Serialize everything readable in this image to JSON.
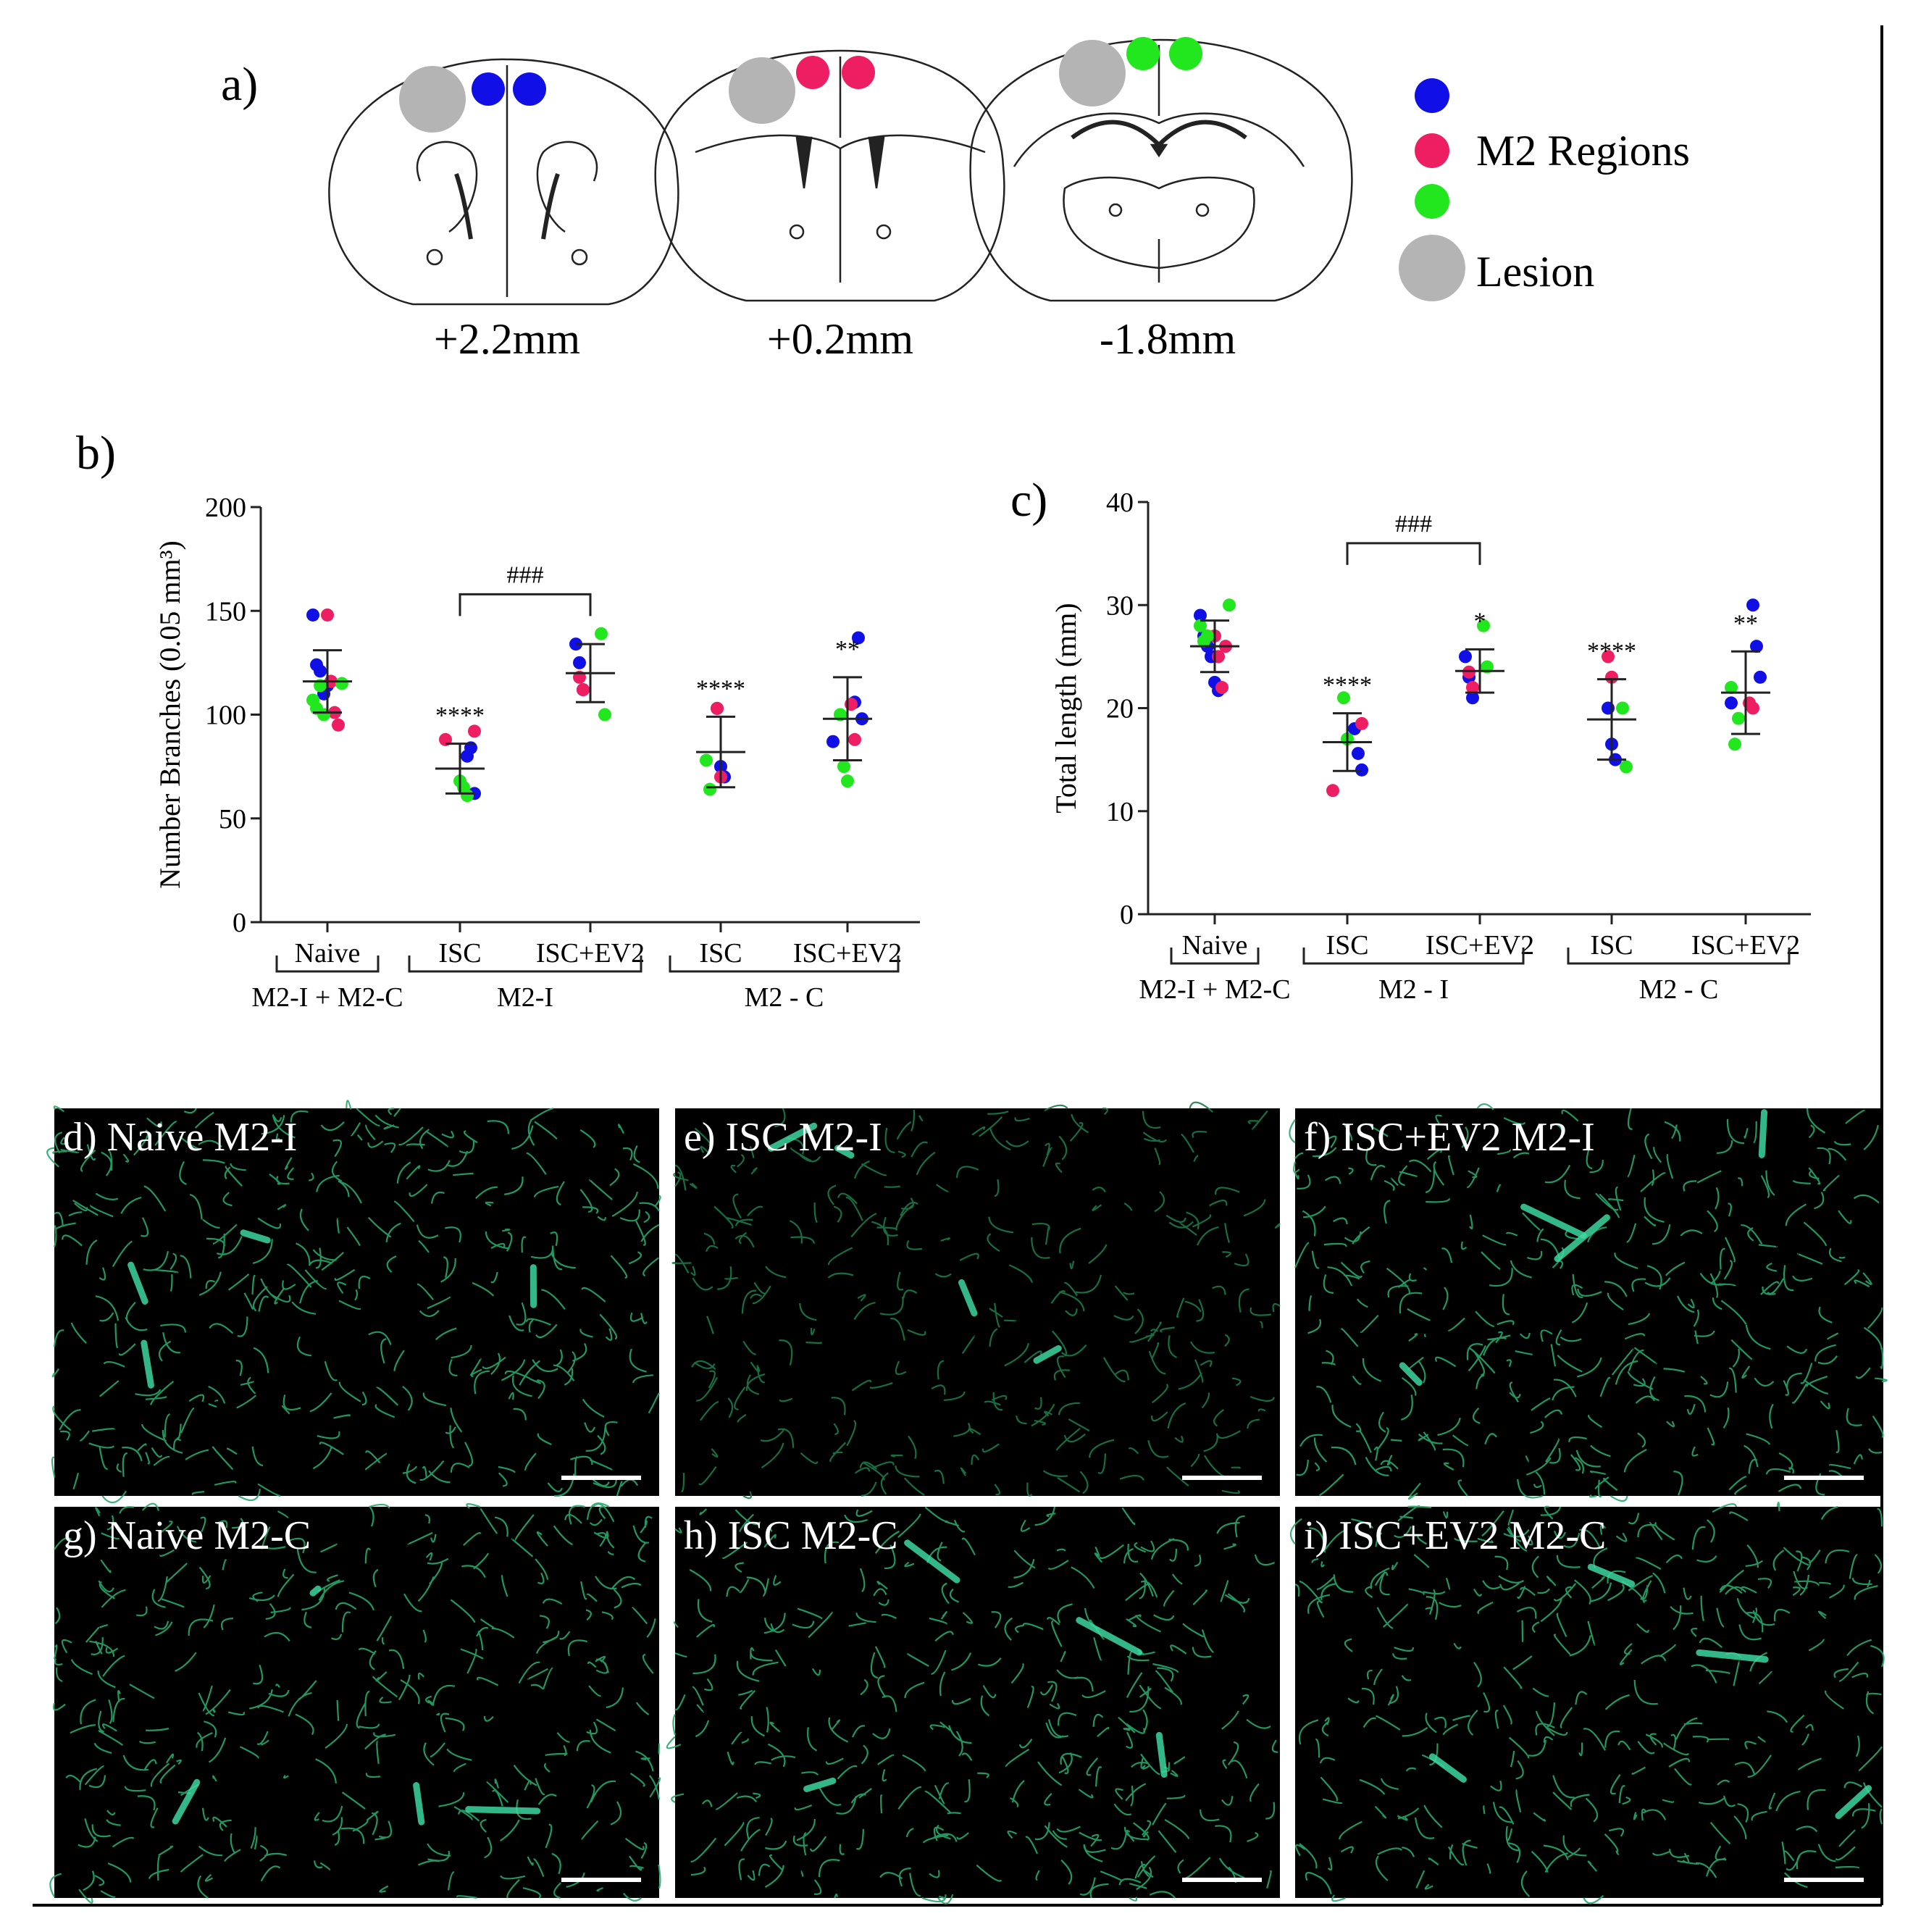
{
  "panel_a": {
    "label": "a)",
    "sections": [
      "+2.2mm",
      "+0.2mm",
      "-1.8mm"
    ],
    "legend": {
      "regions_label": "M2 Regions",
      "lesion_label": "Lesion"
    },
    "colors": {
      "blue": "#1010e6",
      "pink": "#ee1e62",
      "green": "#22e61e",
      "lesion": "#b4b4b4"
    }
  },
  "panel_b": {
    "label": "b)"
  },
  "panel_c": {
    "label": "c)"
  },
  "chart_data": [
    {
      "type": "scatter",
      "ylabel": "Number Branches (0.05 mm³)",
      "ylim": [
        0,
        200
      ],
      "yticks": [
        "0",
        "50",
        "100",
        "150",
        "200"
      ],
      "categories": [
        "Naive",
        "ISC",
        "ISC+EV2",
        "ISC",
        "ISC+EV2"
      ],
      "groups": [
        {
          "label": "M2-I + M2-C",
          "members": [
            0
          ]
        },
        {
          "label": "M2-I",
          "members": [
            1,
            2
          ]
        },
        {
          "label": "M2 - C",
          "members": [
            3,
            4
          ]
        }
      ],
      "mean": [
        116,
        74,
        120,
        82,
        98
      ],
      "sd": [
        15,
        12,
        14,
        17,
        20
      ],
      "significance": [
        "",
        "****",
        "",
        "****",
        "**"
      ],
      "comparison": {
        "from": 1,
        "to": 2,
        "label": "###",
        "y": 158
      },
      "series": [
        {
          "color": "blue",
          "points": [
            [
              0,
              148
            ],
            [
              0,
              124
            ],
            [
              0,
              121
            ],
            [
              0,
              110
            ],
            [
              0,
              114
            ],
            [
              0,
              116
            ],
            [
              1,
              80
            ],
            [
              1,
              84
            ],
            [
              1,
              62
            ],
            [
              2,
              134
            ],
            [
              2,
              125
            ],
            [
              2,
              112
            ],
            [
              3,
              103
            ],
            [
              3,
              75
            ],
            [
              3,
              70
            ],
            [
              4,
              106
            ],
            [
              4,
              137
            ],
            [
              4,
              98
            ],
            [
              4,
              87
            ]
          ]
        },
        {
          "color": "pink",
          "points": [
            [
              0,
              148
            ],
            [
              0,
              116
            ],
            [
              0,
              101
            ],
            [
              0,
              95
            ],
            [
              1,
              92
            ],
            [
              1,
              88
            ],
            [
              2,
              118
            ],
            [
              2,
              112
            ],
            [
              3,
              103
            ],
            [
              3,
              70
            ],
            [
              4,
              105
            ],
            [
              4,
              88
            ]
          ]
        },
        {
          "color": "green",
          "points": [
            [
              0,
              115
            ],
            [
              0,
              107
            ],
            [
              0,
              103
            ],
            [
              0,
              114
            ],
            [
              0,
              100
            ],
            [
              1,
              68
            ],
            [
              1,
              65
            ],
            [
              1,
              61
            ],
            [
              2,
              139
            ],
            [
              2,
              100
            ],
            [
              3,
              78
            ],
            [
              3,
              64
            ],
            [
              4,
              100
            ],
            [
              4,
              75
            ],
            [
              4,
              68
            ]
          ]
        }
      ]
    },
    {
      "type": "scatter",
      "ylabel": "Total length (mm)",
      "ylim": [
        0,
        40
      ],
      "yticks": [
        "0",
        "10",
        "20",
        "30",
        "40"
      ],
      "categories": [
        "Naive",
        "ISC",
        "ISC+EV2",
        "ISC",
        "ISC+EV2"
      ],
      "groups": [
        {
          "label": "M2-I + M2-C",
          "members": [
            0
          ]
        },
        {
          "label": "M2 - I",
          "members": [
            1,
            2
          ]
        },
        {
          "label": "M2 - C",
          "members": [
            3,
            4
          ]
        }
      ],
      "mean": [
        26.0,
        16.7,
        23.6,
        18.9,
        21.5
      ],
      "sd": [
        2.5,
        2.8,
        2.1,
        3.9,
        4.0
      ],
      "significance": [
        "",
        "****",
        "*",
        "****",
        "**"
      ],
      "comparison": {
        "from": 1,
        "to": 2,
        "label": "###",
        "y": 36
      },
      "series": [
        {
          "color": "blue",
          "points": [
            [
              0,
              29
            ],
            [
              0,
              27
            ],
            [
              0,
              26
            ],
            [
              0,
              25
            ],
            [
              0,
              22.5
            ],
            [
              0,
              21.7
            ],
            [
              1,
              18
            ],
            [
              1,
              15.6
            ],
            [
              1,
              14
            ],
            [
              2,
              25
            ],
            [
              2,
              23
            ],
            [
              2,
              21
            ],
            [
              3,
              20
            ],
            [
              3,
              16.5
            ],
            [
              3,
              15
            ],
            [
              4,
              30
            ],
            [
              4,
              26
            ],
            [
              4,
              23
            ],
            [
              4,
              20.5
            ]
          ]
        },
        {
          "color": "pink",
          "points": [
            [
              0,
              27
            ],
            [
              0,
              25
            ],
            [
              0,
              22
            ],
            [
              0,
              26
            ],
            [
              1,
              18.5
            ],
            [
              1,
              12
            ],
            [
              2,
              23.5
            ],
            [
              2,
              22
            ],
            [
              3,
              25
            ],
            [
              3,
              23
            ],
            [
              4,
              20.5
            ],
            [
              4,
              20
            ]
          ]
        },
        {
          "color": "green",
          "points": [
            [
              0,
              30
            ],
            [
              0,
              28
            ],
            [
              0,
              26.5
            ],
            [
              0,
              27
            ],
            [
              1,
              21
            ],
            [
              1,
              17
            ],
            [
              2,
              28
            ],
            [
              2,
              24
            ],
            [
              3,
              20
            ],
            [
              3,
              14.3
            ],
            [
              4,
              22
            ],
            [
              4,
              16.5
            ],
            [
              4,
              19
            ]
          ]
        }
      ]
    }
  ],
  "micrographs": [
    {
      "label": "d) Naive M2-I"
    },
    {
      "label": "e) ISC M2-I"
    },
    {
      "label": "f) ISC+EV2 M2-I"
    },
    {
      "label": "g) Naive M2-C"
    },
    {
      "label": "h) ISC M2-C"
    },
    {
      "label": "i) ISC+EV2 M2-C"
    }
  ]
}
